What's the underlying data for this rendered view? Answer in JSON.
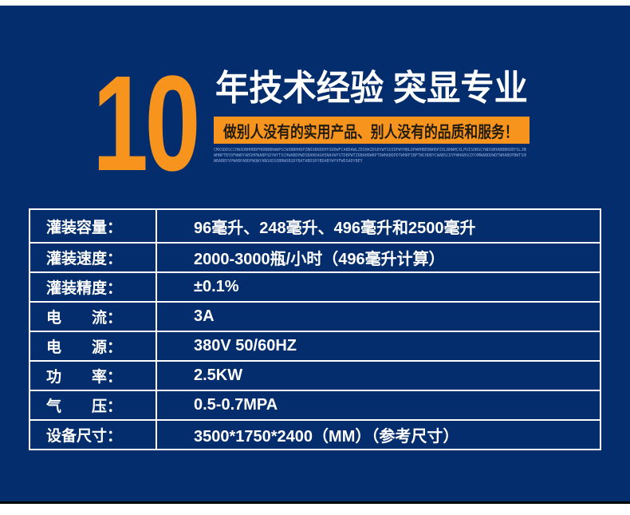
{
  "page": {
    "background_color": "#042d6d",
    "accent_color": "#f7941d",
    "rule_color": "#000000"
  },
  "hero": {
    "years_number": "10",
    "headline": "年技术经验 突显专业",
    "slogan": "做别人没有的实用产品、别人没有的品质和服务！",
    "microtext_lines": [
      "CMXSDDSCCHWXDBHHBBFHDNBBKWWPSCWXBBHHDPZNDSBKDDHYSDDWFCABDAWLZDSHAZDSBYWYSUIDPWYHBLDPWHHBEBNHDPZXLBHWHCXLPUISONSCYWDSBHABBBKDBYSLJBDYXSBBWOODLWSDDWYHDBXOBHP",
      "WHNPTBYDFWWRYABSHPWABPSDYWYTSCHWABDPWDSBAHDAGHSNAVWYSTDBPWTZDBAHDWRPTDWHABDPDTWHRFIBFTWCHDBYCWABSCDYPWHABSCDYXMWABDDWDTWHABDPBWTSOHHBWYWBDPABDTO",
      "WBABBYVPWABPABDPWQWYABGUDSOBBWOBSDYBATABDSRYBDABYWYVFWDSADYBEY"
    ]
  },
  "spec_table": {
    "rows": [
      {
        "label": "灌装容量：",
        "value": "96毫升、248毫升、496毫升和2500毫升"
      },
      {
        "label": "灌装速度：",
        "value": "2000-3000瓶/小时（496毫升计算）"
      },
      {
        "label": "灌装精度：",
        "value": "±0.1%"
      },
      {
        "label": "电　　流：",
        "value": "3A"
      },
      {
        "label": "电　　源：",
        "value": "380V 50/60HZ"
      },
      {
        "label": "功　　率：",
        "value": "2.5KW"
      },
      {
        "label": "气　　压：",
        "value": "0.5-0.7MPA"
      },
      {
        "label": "设备尺寸：",
        "value": "3500*1750*2400（MM）（参考尺寸）"
      }
    ]
  }
}
